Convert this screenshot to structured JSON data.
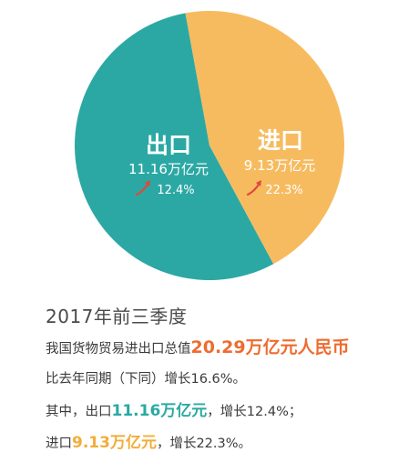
{
  "chart_data": {
    "type": "pie",
    "slices": [
      {
        "name": "出口",
        "value": 11.16,
        "value_label": "11.16万亿元",
        "growth_label": "12.4%",
        "color": "#2ba8a4"
      },
      {
        "name": "进口",
        "value": 9.13,
        "value_label": "9.13万亿元",
        "growth_label": "22.3%",
        "color": "#f7bb5f"
      }
    ],
    "arrow_color": "#e0483b"
  },
  "text": {
    "heading": "2017年前三季度",
    "line1_prefix": "我国货物贸易进出口总值",
    "line1_highlight": "20.29万亿元人民币",
    "line2": "比去年同期（下同）增长16.6%。",
    "line3_prefix": "其中，出口",
    "line3_highlight": "11.16万亿元",
    "line3_suffix": "，增长12.4%；",
    "line4_prefix": "进口",
    "line4_highlight": "9.13万亿元",
    "line4_suffix": "，增长22.3%。"
  }
}
